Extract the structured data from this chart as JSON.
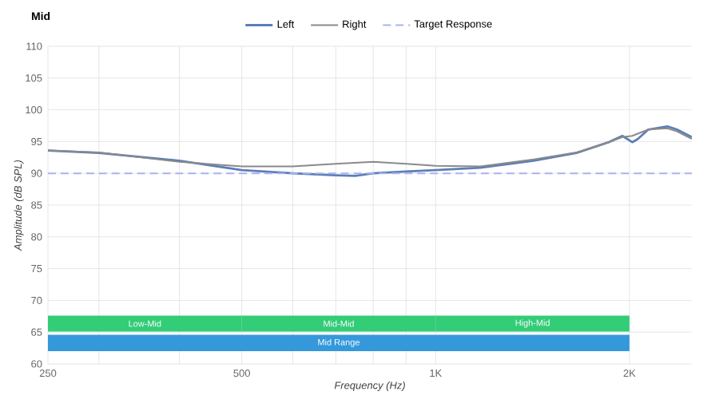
{
  "chart_data": {
    "type": "line",
    "title": "Mid",
    "xlabel": "Frequency (Hz)",
    "ylabel": "Amplitude (dB SPL)",
    "log": "x",
    "grid": true,
    "legend": "top",
    "xlim": [
      250,
      2500
    ],
    "ylim": [
      60,
      110
    ],
    "xticks": [
      250,
      {
        "value": 300,
        "label": null
      },
      {
        "value": 400,
        "label": null
      },
      500,
      {
        "value": 600,
        "label": null
      },
      {
        "value": 700,
        "label": null
      },
      {
        "value": 800,
        "label": null
      },
      {
        "value": 900,
        "label": null
      },
      {
        "value": 1000,
        "label": "1K"
      },
      {
        "value": 2000,
        "label": "2K"
      }
    ],
    "yticks": [
      60,
      65,
      70,
      75,
      80,
      85,
      90,
      95,
      100,
      105,
      110
    ],
    "series": [
      {
        "name": "Left",
        "color": "#5b7fb8",
        "x": [
          250,
          300,
          400,
          500,
          600,
          700,
          750,
          800,
          900,
          1000,
          1174,
          1420,
          1655,
          1857,
          1950,
          2020,
          2060,
          2140,
          2290,
          2370,
          2500
        ],
        "values": [
          93.6,
          93.2,
          92.0,
          90.5,
          90.0,
          89.7,
          89.6,
          90.0,
          90.3,
          90.5,
          90.9,
          92.0,
          93.2,
          94.9,
          95.9,
          94.9,
          95.4,
          96.9,
          97.4,
          96.9,
          95.7
        ]
      },
      {
        "name": "Right",
        "color": "#8a8a8a",
        "x": [
          250,
          300,
          400,
          500,
          600,
          700,
          800,
          900,
          1000,
          1174,
          1420,
          1655,
          1857,
          1950,
          2020,
          2140,
          2290,
          2370,
          2500
        ],
        "values": [
          93.6,
          93.3,
          91.8,
          91.1,
          91.1,
          91.5,
          91.8,
          91.5,
          91.2,
          91.1,
          92.2,
          93.3,
          94.9,
          95.7,
          95.9,
          96.9,
          97.1,
          96.6,
          95.4
        ]
      },
      {
        "name": "Target Response",
        "color": "#aab2f0",
        "line_style": "dashed",
        "x": [
          250,
          2500
        ],
        "values": [
          90,
          90
        ]
      }
    ],
    "bands": [
      {
        "axis": "x",
        "from": 250,
        "to": 500,
        "label": "Low-Mid",
        "color": "#33cc77"
      },
      {
        "axis": "x",
        "from": 500,
        "to": 1000,
        "label": "Mid-Mid",
        "color": "#33cc77"
      },
      {
        "axis": "x",
        "from": 1000,
        "to": 2000,
        "label": "High-Mid",
        "color": "#33cc77"
      },
      {
        "axis": "x",
        "from": 250,
        "to": 2000,
        "label": "Mid Range",
        "color": "#3498db"
      }
    ]
  }
}
